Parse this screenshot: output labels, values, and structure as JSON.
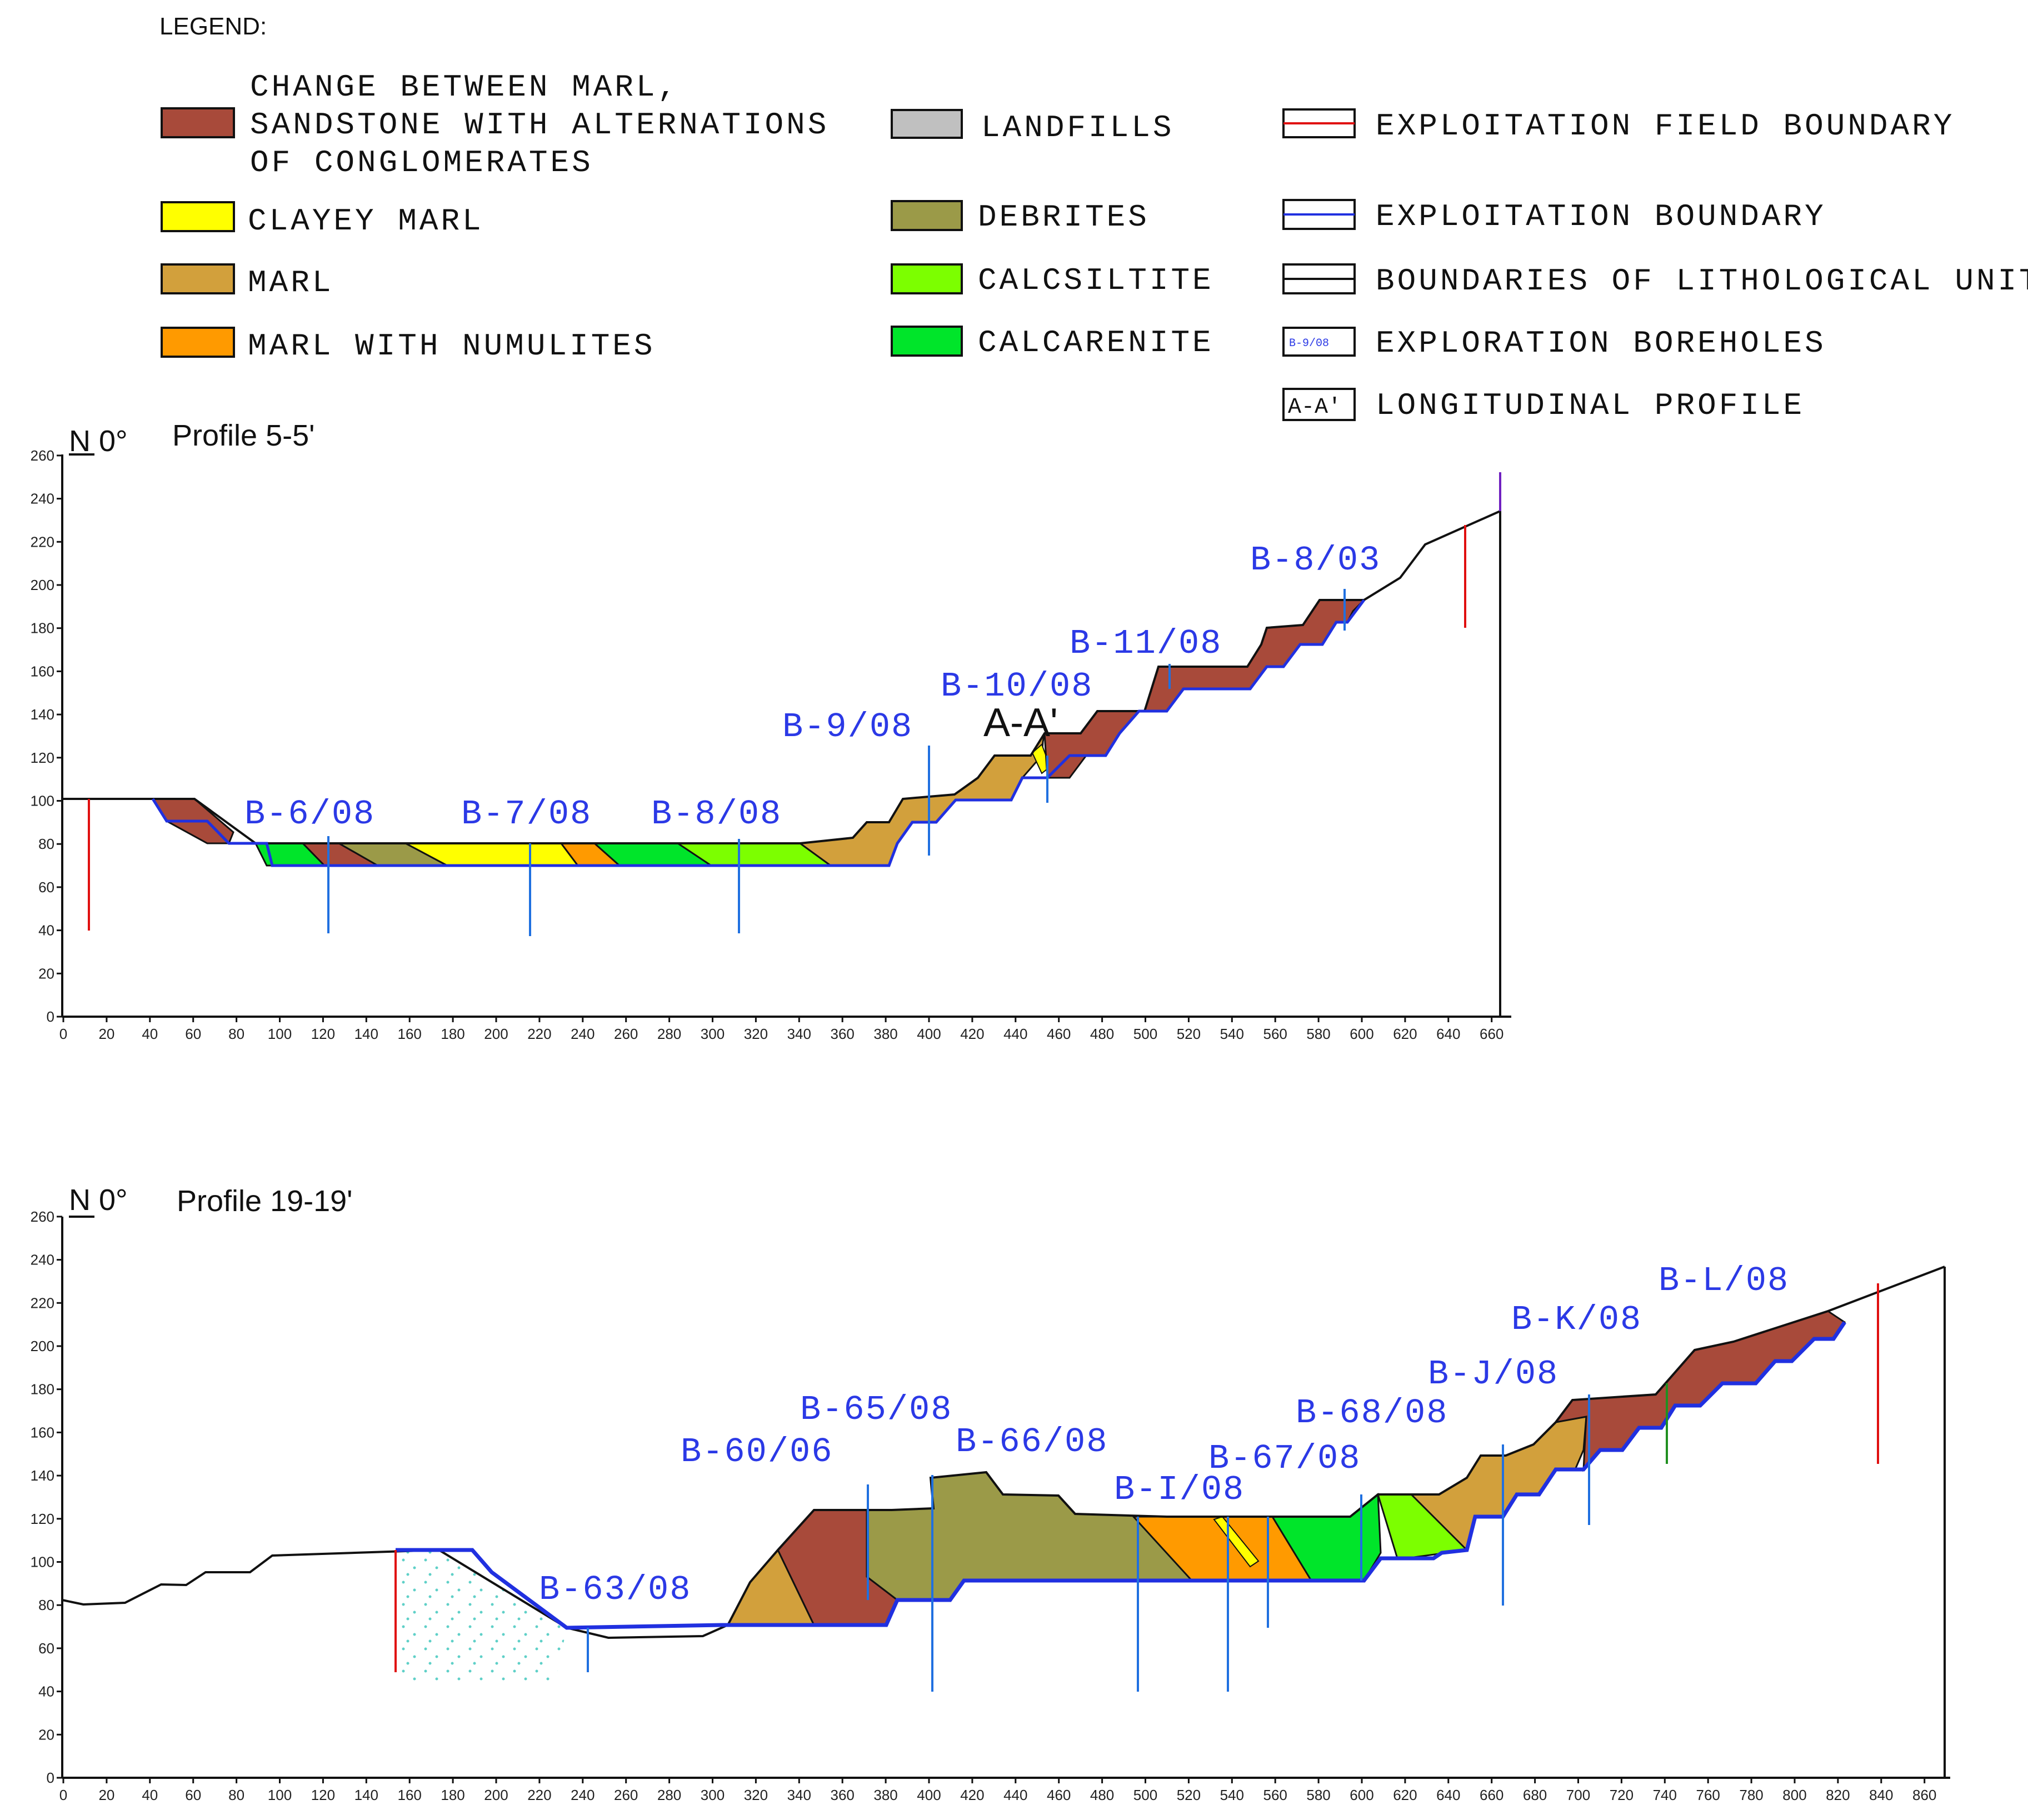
{
  "legend": {
    "heading": "LEGEND:",
    "units": [
      {
        "id": "conglomerates",
        "line1": "CHANGE BETWEEN MARL,",
        "line2": "SANDSTONE WITH ALTERNATIONS",
        "line3": "OF CONGLOMERATES",
        "color": "#a84a3a"
      },
      {
        "id": "clayey-marl",
        "label": "CLAYEY MARL",
        "color": "#ffff00"
      },
      {
        "id": "marl",
        "label": "MARL",
        "color": "#d2a03c"
      },
      {
        "id": "marl-numulites",
        "label": "MARL WITH NUMULITES",
        "color": "#ff9a00"
      },
      {
        "id": "landfills",
        "label": "LANDFILLS",
        "color": "#c0c0c0"
      },
      {
        "id": "debrites",
        "label": "DEBRITES",
        "color": "#9b9a48"
      },
      {
        "id": "calcsiltite",
        "label": "CALCSILTITE",
        "color": "#7cff00"
      },
      {
        "id": "calcarenite",
        "label": "CALCARENITE",
        "color": "#00e52a"
      }
    ],
    "lines": [
      {
        "id": "field-boundary",
        "label": "EXPLOITATION FIELD BOUNDARY",
        "color": "#e01010"
      },
      {
        "id": "exploitation-boundary",
        "label": "EXPLOITATION BOUNDARY",
        "color": "#2030e0"
      },
      {
        "id": "lithological",
        "label": "BOUNDARIES OF LITHOLOGICAL UNITS",
        "color": "#111111"
      },
      {
        "id": "boreholes",
        "label": "EXPLORATION BOREHOLES",
        "symbol": "B-9/08",
        "color": "#2030e0"
      },
      {
        "id": "profile",
        "label": "LONGITUDINAL PROFILE",
        "symbol": "A-A'",
        "color": "#111111"
      }
    ]
  },
  "profiles": [
    {
      "id": "profile-5",
      "title": "Profile 5-5'",
      "north": "N 0°",
      "x_ticks": [
        "0",
        "20",
        "40",
        "60",
        "80",
        "100",
        "120",
        "140",
        "160",
        "180",
        "200",
        "220",
        "240",
        "260",
        "280",
        "300",
        "320",
        "340",
        "360",
        "380",
        "400",
        "420",
        "440",
        "460",
        "480",
        "500",
        "520",
        "540",
        "560",
        "580",
        "600",
        "620",
        "640",
        "660"
      ],
      "y_ticks": [
        "0",
        "20",
        "40",
        "60",
        "80",
        "100",
        "120",
        "140",
        "160",
        "180",
        "200",
        "220",
        "240",
        "260"
      ],
      "boreholes": [
        "B-6/08",
        "B-7/08",
        "B-8/08",
        "B-9/08",
        "B-10/08",
        "B-11/08",
        "B-8/03"
      ],
      "section_label": "A-A'"
    },
    {
      "id": "profile-19",
      "title": "Profile 19-19'",
      "north": "N 0°",
      "x_ticks": [
        "0",
        "20",
        "40",
        "60",
        "80",
        "100",
        "120",
        "140",
        "160",
        "180",
        "200",
        "220",
        "240",
        "260",
        "280",
        "300",
        "320",
        "340",
        "360",
        "380",
        "400",
        "420",
        "440",
        "460",
        "480",
        "500",
        "520",
        "540",
        "560",
        "580",
        "600",
        "620",
        "640",
        "660",
        "680",
        "700",
        "720",
        "740",
        "760",
        "780",
        "800",
        "820",
        "840",
        "860"
      ],
      "y_ticks": [
        "0",
        "20",
        "40",
        "60",
        "80",
        "100",
        "120",
        "140",
        "160",
        "180",
        "200",
        "220",
        "240",
        "260"
      ],
      "boreholes": [
        "B-63/08",
        "B-60/06",
        "B-65/08",
        "B-66/08",
        "B-I/08",
        "B-67/08",
        "B-68/08",
        "B-J/08",
        "B-K/08",
        "B-L/08"
      ]
    }
  ]
}
